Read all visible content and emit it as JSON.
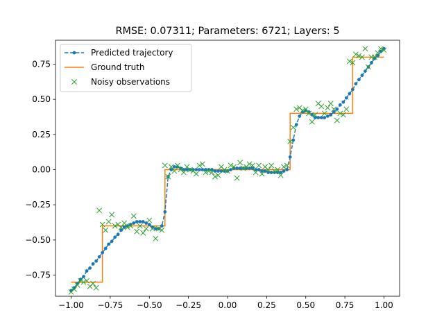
{
  "chart_data": {
    "type": "line",
    "title": "RMSE: 0.07311; Parameters: 6721; Layers: 5",
    "xlabel": "",
    "ylabel": "",
    "xlim": [
      -1.1,
      1.1
    ],
    "ylim": [
      -0.9,
      0.92
    ],
    "xticks": [
      -1.0,
      -0.75,
      -0.5,
      -0.25,
      0.0,
      0.25,
      0.5,
      0.75,
      1.0
    ],
    "xtick_labels": [
      "−1.00",
      "−0.75",
      "−0.50",
      "−0.25",
      "0.00",
      "0.25",
      "0.50",
      "0.75",
      "1.00"
    ],
    "yticks": [
      -0.75,
      -0.5,
      -0.25,
      0.0,
      0.25,
      0.5,
      0.75
    ],
    "ytick_labels": [
      "−0.75",
      "−0.50",
      "−0.25",
      "0.00",
      "0.25",
      "0.50",
      "0.75"
    ],
    "grid": false,
    "legend_position": "upper-left",
    "colors": {
      "predicted": "#1f77b4",
      "ground_truth": "#ff7f0e",
      "noisy": "#2ca02c"
    },
    "series": [
      {
        "name": "Predicted trajectory",
        "style": "dashed-line-with-dots",
        "x": [
          -1.0,
          -0.98,
          -0.96,
          -0.94,
          -0.92,
          -0.9,
          -0.88,
          -0.86,
          -0.84,
          -0.82,
          -0.8,
          -0.78,
          -0.76,
          -0.74,
          -0.72,
          -0.7,
          -0.68,
          -0.66,
          -0.64,
          -0.62,
          -0.6,
          -0.58,
          -0.56,
          -0.54,
          -0.52,
          -0.5,
          -0.48,
          -0.46,
          -0.44,
          -0.42,
          -0.4,
          -0.38,
          -0.36,
          -0.34,
          -0.32,
          -0.3,
          -0.28,
          -0.26,
          -0.24,
          -0.22,
          -0.2,
          -0.18,
          -0.16,
          -0.14,
          -0.12,
          -0.1,
          -0.08,
          -0.06,
          -0.04,
          -0.02,
          0.0,
          0.02,
          0.04,
          0.06,
          0.08,
          0.1,
          0.12,
          0.14,
          0.16,
          0.18,
          0.2,
          0.22,
          0.24,
          0.26,
          0.28,
          0.3,
          0.32,
          0.34,
          0.36,
          0.38,
          0.4,
          0.42,
          0.44,
          0.46,
          0.48,
          0.5,
          0.52,
          0.54,
          0.56,
          0.58,
          0.6,
          0.62,
          0.64,
          0.66,
          0.68,
          0.7,
          0.72,
          0.74,
          0.76,
          0.78,
          0.8,
          0.82,
          0.84,
          0.86,
          0.88,
          0.9,
          0.92,
          0.94,
          0.96,
          0.98,
          1.0
        ],
        "y": [
          -0.86,
          -0.84,
          -0.81,
          -0.78,
          -0.76,
          -0.72,
          -0.7,
          -0.67,
          -0.65,
          -0.62,
          -0.59,
          -0.56,
          -0.53,
          -0.51,
          -0.48,
          -0.46,
          -0.43,
          -0.41,
          -0.4,
          -0.39,
          -0.38,
          -0.37,
          -0.37,
          -0.37,
          -0.38,
          -0.39,
          -0.41,
          -0.42,
          -0.42,
          -0.4,
          -0.3,
          -0.05,
          0.0,
          0.02,
          0.02,
          0.01,
          0.0,
          0.0,
          0.0,
          0.0,
          0.0,
          0.0,
          0.0,
          0.0,
          0.0,
          0.0,
          -0.01,
          -0.01,
          -0.01,
          -0.01,
          -0.01,
          0.0,
          0.01,
          0.01,
          0.01,
          0.01,
          0.01,
          0.01,
          0.01,
          0.0,
          0.0,
          -0.01,
          -0.01,
          -0.02,
          -0.02,
          -0.02,
          -0.02,
          -0.02,
          -0.01,
          0.0,
          0.09,
          0.21,
          0.32,
          0.38,
          0.41,
          0.42,
          0.41,
          0.39,
          0.37,
          0.37,
          0.37,
          0.37,
          0.38,
          0.39,
          0.41,
          0.43,
          0.46,
          0.48,
          0.51,
          0.54,
          0.57,
          0.61,
          0.64,
          0.67,
          0.7,
          0.73,
          0.76,
          0.79,
          0.81,
          0.84,
          0.86
        ]
      },
      {
        "name": "Ground truth",
        "style": "solid-line",
        "x": [
          -1.0,
          -0.8,
          -0.8,
          -0.4,
          -0.4,
          0.4,
          0.4,
          0.8,
          0.8,
          1.0
        ],
        "y": [
          -0.8,
          -0.8,
          -0.4,
          -0.4,
          0.0,
          0.0,
          0.4,
          0.4,
          0.8,
          0.8
        ]
      },
      {
        "name": "Noisy observations",
        "style": "x-markers",
        "x": [
          -1.0,
          -0.98,
          -0.96,
          -0.94,
          -0.92,
          -0.9,
          -0.88,
          -0.86,
          -0.84,
          -0.82,
          -0.8,
          -0.78,
          -0.76,
          -0.74,
          -0.72,
          -0.7,
          -0.68,
          -0.66,
          -0.64,
          -0.62,
          -0.6,
          -0.58,
          -0.56,
          -0.54,
          -0.52,
          -0.5,
          -0.48,
          -0.46,
          -0.44,
          -0.42,
          -0.4,
          -0.38,
          -0.36,
          -0.34,
          -0.32,
          -0.3,
          -0.28,
          -0.26,
          -0.24,
          -0.22,
          -0.2,
          -0.18,
          -0.16,
          -0.14,
          -0.12,
          -0.1,
          -0.08,
          -0.06,
          -0.04,
          -0.02,
          0.0,
          0.02,
          0.04,
          0.06,
          0.08,
          0.1,
          0.12,
          0.14,
          0.16,
          0.18,
          0.2,
          0.22,
          0.24,
          0.26,
          0.28,
          0.3,
          0.32,
          0.34,
          0.36,
          0.38,
          0.4,
          0.42,
          0.44,
          0.46,
          0.48,
          0.5,
          0.52,
          0.54,
          0.56,
          0.58,
          0.6,
          0.62,
          0.64,
          0.66,
          0.68,
          0.7,
          0.72,
          0.74,
          0.76,
          0.78,
          0.8,
          0.82,
          0.84,
          0.86,
          0.88,
          0.9,
          0.92,
          0.94,
          0.96,
          0.98,
          1.0
        ],
        "y": [
          -0.87,
          -0.85,
          -0.82,
          -0.79,
          -0.8,
          -0.79,
          -0.83,
          -0.81,
          -0.84,
          -0.29,
          -0.39,
          -0.43,
          -0.37,
          -0.32,
          -0.4,
          -0.39,
          -0.41,
          -0.38,
          -0.41,
          -0.4,
          -0.33,
          -0.44,
          -0.4,
          -0.45,
          -0.42,
          -0.36,
          -0.42,
          -0.49,
          -0.42,
          -0.43,
          0.03,
          -0.05,
          0.02,
          -0.01,
          0.03,
          0.0,
          -0.02,
          0.02,
          0.0,
          -0.01,
          -0.03,
          0.03,
          0.04,
          -0.02,
          -0.01,
          -0.02,
          -0.05,
          -0.04,
          0.02,
          0.0,
          -0.01,
          0.03,
          0.02,
          -0.06,
          0.05,
          0.01,
          0.02,
          0.04,
          0.03,
          -0.02,
          0.03,
          -0.03,
          0.02,
          0.0,
          0.03,
          -0.01,
          0.0,
          -0.04,
          0.02,
          0.03,
          0.2,
          0.3,
          0.43,
          0.44,
          0.42,
          0.43,
          0.4,
          0.34,
          0.39,
          0.47,
          0.45,
          0.4,
          0.44,
          0.47,
          0.43,
          0.35,
          0.4,
          0.39,
          0.43,
          0.77,
          0.76,
          0.82,
          0.81,
          0.8,
          0.86,
          0.73,
          0.8,
          0.8,
          0.83,
          0.86,
          0.85
        ]
      }
    ]
  }
}
